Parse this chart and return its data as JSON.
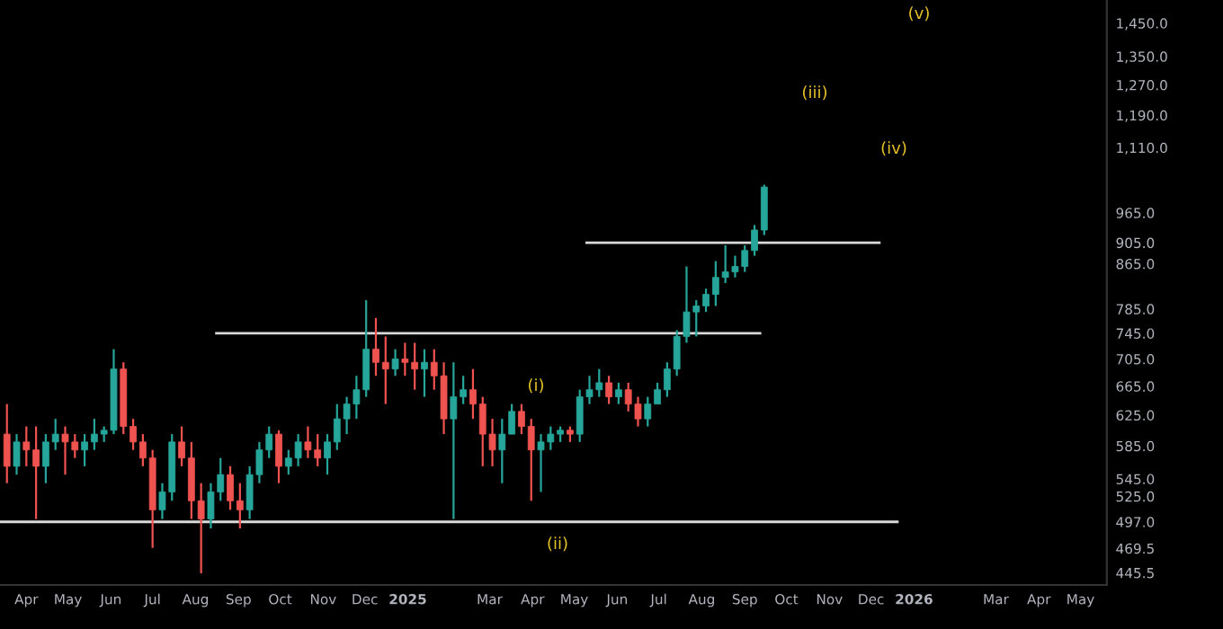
{
  "chart_data": {
    "type": "candlestick",
    "x": [
      "2024-03-18",
      "2024-03-25",
      "2024-04-01",
      "2024-04-08",
      "2024-04-15",
      "2024-04-22",
      "2024-04-29",
      "2024-05-06",
      "2024-05-13",
      "2024-05-20",
      "2024-05-27",
      "2024-06-03",
      "2024-06-10",
      "2024-06-17",
      "2024-06-24",
      "2024-07-01",
      "2024-07-08",
      "2024-07-15",
      "2024-07-22",
      "2024-07-29",
      "2024-08-05",
      "2024-08-12",
      "2024-08-19",
      "2024-08-26",
      "2024-09-02",
      "2024-09-09",
      "2024-09-16",
      "2024-09-23",
      "2024-09-30",
      "2024-10-07",
      "2024-10-14",
      "2024-10-21",
      "2024-10-28",
      "2024-11-04",
      "2024-11-11",
      "2024-11-18",
      "2024-11-25",
      "2024-12-02",
      "2024-12-09",
      "2024-12-16",
      "2024-12-23",
      "2024-12-30",
      "2025-01-06",
      "2025-01-13",
      "2025-01-20",
      "2025-01-27",
      "2025-02-03",
      "2025-02-10",
      "2025-02-17",
      "2025-02-24",
      "2025-03-03",
      "2025-03-10",
      "2025-03-17",
      "2025-03-24",
      "2025-03-31",
      "2025-04-07",
      "2025-04-14",
      "2025-04-21",
      "2025-04-28",
      "2025-05-05",
      "2025-05-12",
      "2025-05-19",
      "2025-05-26",
      "2025-06-02",
      "2025-06-09",
      "2025-06-16",
      "2025-06-23",
      "2025-06-30",
      "2025-07-07",
      "2025-07-14",
      "2025-07-21",
      "2025-07-28",
      "2025-08-04",
      "2025-08-11",
      "2025-08-18",
      "2025-08-25",
      "2025-09-01",
      "2025-09-08",
      "2025-09-15"
    ],
    "ohlc": [
      [
        600,
        640,
        540,
        560
      ],
      [
        560,
        600,
        550,
        590
      ],
      [
        590,
        610,
        560,
        580
      ],
      [
        580,
        610,
        500,
        560
      ],
      [
        560,
        600,
        540,
        590
      ],
      [
        590,
        620,
        580,
        600
      ],
      [
        600,
        610,
        550,
        590
      ],
      [
        590,
        600,
        570,
        580
      ],
      [
        580,
        600,
        560,
        590
      ],
      [
        590,
        620,
        580,
        600
      ],
      [
        600,
        610,
        590,
        605
      ],
      [
        605,
        720,
        600,
        690
      ],
      [
        690,
        700,
        600,
        610
      ],
      [
        610,
        620,
        580,
        590
      ],
      [
        590,
        600,
        560,
        570
      ],
      [
        570,
        580,
        470,
        510
      ],
      [
        510,
        540,
        500,
        530
      ],
      [
        530,
        600,
        520,
        590
      ],
      [
        590,
        610,
        560,
        570
      ],
      [
        570,
        590,
        500,
        520
      ],
      [
        520,
        540,
        445,
        500
      ],
      [
        500,
        540,
        490,
        530
      ],
      [
        530,
        570,
        520,
        550
      ],
      [
        550,
        560,
        510,
        520
      ],
      [
        520,
        540,
        490,
        510
      ],
      [
        510,
        560,
        500,
        550
      ],
      [
        550,
        590,
        540,
        580
      ],
      [
        580,
        610,
        570,
        600
      ],
      [
        600,
        605,
        540,
        560
      ],
      [
        560,
        580,
        550,
        570
      ],
      [
        570,
        600,
        560,
        590
      ],
      [
        590,
        610,
        570,
        580
      ],
      [
        580,
        600,
        560,
        570
      ],
      [
        570,
        600,
        550,
        590
      ],
      [
        590,
        640,
        580,
        620
      ],
      [
        620,
        650,
        600,
        640
      ],
      [
        640,
        680,
        620,
        660
      ],
      [
        660,
        800,
        650,
        720
      ],
      [
        720,
        770,
        680,
        700
      ],
      [
        700,
        740,
        640,
        690
      ],
      [
        690,
        720,
        680,
        705
      ],
      [
        705,
        730,
        680,
        700
      ],
      [
        700,
        730,
        660,
        690
      ],
      [
        690,
        720,
        650,
        700
      ],
      [
        700,
        720,
        660,
        680
      ],
      [
        680,
        700,
        600,
        620
      ],
      [
        620,
        700,
        500,
        650
      ],
      [
        650,
        680,
        640,
        660
      ],
      [
        660,
        690,
        620,
        640
      ],
      [
        640,
        650,
        560,
        600
      ],
      [
        600,
        620,
        560,
        580
      ],
      [
        580,
        620,
        540,
        600
      ],
      [
        600,
        640,
        600,
        630
      ],
      [
        630,
        640,
        600,
        610
      ],
      [
        610,
        620,
        520,
        580
      ],
      [
        580,
        600,
        530,
        590
      ],
      [
        590,
        610,
        580,
        600
      ],
      [
        600,
        610,
        590,
        605
      ],
      [
        605,
        610,
        590,
        600
      ],
      [
        600,
        660,
        590,
        650
      ],
      [
        650,
        680,
        640,
        660
      ],
      [
        660,
        690,
        650,
        670
      ],
      [
        670,
        680,
        640,
        650
      ],
      [
        650,
        670,
        640,
        660
      ],
      [
        660,
        670,
        630,
        640
      ],
      [
        640,
        650,
        610,
        620
      ],
      [
        620,
        650,
        610,
        640
      ],
      [
        640,
        670,
        640,
        660
      ],
      [
        660,
        700,
        650,
        690
      ],
      [
        690,
        750,
        680,
        740
      ],
      [
        740,
        860,
        730,
        780
      ],
      [
        780,
        800,
        740,
        790
      ],
      [
        790,
        820,
        780,
        810
      ],
      [
        810,
        870,
        790,
        840
      ],
      [
        840,
        900,
        830,
        850
      ],
      [
        850,
        880,
        840,
        860
      ],
      [
        860,
        900,
        850,
        890
      ],
      [
        890,
        940,
        880,
        930
      ],
      [
        930,
        1025,
        920,
        1020
      ]
    ],
    "colors": [
      "#ef5350",
      "#26a69a",
      "#ef5350",
      "#ef5350",
      "#26a69a",
      "#26a69a",
      "#ef5350",
      "#ef5350",
      "#26a69a",
      "#26a69a",
      "#26a69a",
      "#26a69a",
      "#ef5350",
      "#ef5350",
      "#ef5350",
      "#ef5350",
      "#26a69a",
      "#26a69a",
      "#ef5350",
      "#ef5350",
      "#ef5350",
      "#26a69a",
      "#26a69a",
      "#ef5350",
      "#ef5350",
      "#26a69a",
      "#26a69a",
      "#26a69a",
      "#ef5350",
      "#26a69a",
      "#26a69a",
      "#ef5350",
      "#ef5350",
      "#26a69a",
      "#26a69a",
      "#26a69a",
      "#26a69a",
      "#26a69a",
      "#ef5350",
      "#ef5350",
      "#26a69a",
      "#ef5350",
      "#ef5350",
      "#26a69a",
      "#ef5350",
      "#ef5350",
      "#26a69a",
      "#26a69a",
      "#ef5350",
      "#ef5350",
      "#ef5350",
      "#26a69a",
      "#26a69a",
      "#ef5350",
      "#ef5350",
      "#26a69a",
      "#26a69a",
      "#26a69a",
      "#ef5350",
      "#26a69a",
      "#26a69a",
      "#26a69a",
      "#ef5350",
      "#26a69a",
      "#ef5350",
      "#ef5350",
      "#26a69a",
      "#26a69a",
      "#26a69a",
      "#26a69a",
      "#26a69a",
      "#26a69a",
      "#26a69a",
      "#26a69a",
      "#26a69a",
      "#26a69a",
      "#26a69a",
      "#26a69a",
      "#26a69a"
    ],
    "series": [
      {
        "type": "line",
        "color": "#d9d9d9",
        "x": [
          "2024-03-13",
          "2025-12-20"
        ],
        "values": [
          497,
          497
        ]
      },
      {
        "type": "line",
        "color": "#d9d9d9",
        "x": [
          "2024-08-16",
          "2025-09-12"
        ],
        "values": [
          745,
          745
        ]
      },
      {
        "type": "line",
        "color": "#d9d9d9",
        "x": [
          "2025-05-10",
          "2025-12-07"
        ],
        "values": [
          905,
          905
        ]
      }
    ],
    "annotations": [
      "(i)",
      "(ii)",
      "(iii)",
      "(iv)",
      "(v)"
    ],
    "log": "y",
    "xlim": [
      "2024-03-13",
      "2026-05-20"
    ],
    "xticks": [
      {
        "value": "2024-04-01",
        "label": "Apr"
      },
      {
        "value": "2024-05-01",
        "label": "May"
      },
      {
        "value": "2024-06-01",
        "label": "Jun"
      },
      {
        "value": "2024-07-01",
        "label": "Jul"
      },
      {
        "value": "2024-08-01",
        "label": "Aug"
      },
      {
        "value": "2024-09-01",
        "label": "Sep"
      },
      {
        "value": "2024-10-01",
        "label": "Oct"
      },
      {
        "value": "2024-11-01",
        "label": "Nov"
      },
      {
        "value": "2024-12-01",
        "label": "Dec"
      },
      {
        "value": "2025-01-01",
        "label": "2025"
      },
      {
        "value": "2025-03-01",
        "label": "Mar"
      },
      {
        "value": "2025-04-01",
        "label": "Apr"
      },
      {
        "value": "2025-05-01",
        "label": "May"
      },
      {
        "value": "2025-06-01",
        "label": "Jun"
      },
      {
        "value": "2025-07-01",
        "label": "Jul"
      },
      {
        "value": "2025-08-01",
        "label": "Aug"
      },
      {
        "value": "2025-09-01",
        "label": "Sep"
      },
      {
        "value": "2025-10-01",
        "label": "Oct"
      },
      {
        "value": "2025-11-01",
        "label": "Nov"
      },
      {
        "value": "2025-12-01",
        "label": "Dec"
      },
      {
        "value": "2026-01-01",
        "label": "2026"
      },
      {
        "value": "2026-03-01",
        "label": "Mar"
      },
      {
        "value": "2026-04-01",
        "label": "Apr"
      },
      {
        "value": "2026-05-01",
        "label": "May"
      }
    ],
    "ylim": [
      434,
      1524
    ],
    "yticks": [
      {
        "value": 445.5,
        "label": "445.5"
      },
      {
        "value": 469.5,
        "label": "469.5"
      },
      {
        "value": 497,
        "label": "497.0"
      },
      {
        "value": 525,
        "label": "525.0"
      },
      {
        "value": 545,
        "label": "545.0"
      },
      {
        "value": 585,
        "label": "585.0"
      },
      {
        "value": 625,
        "label": "625.0"
      },
      {
        "value": 665,
        "label": "665.0"
      },
      {
        "value": 705,
        "label": "705.0"
      },
      {
        "value": 745,
        "label": "745.0"
      },
      {
        "value": 785,
        "label": "785.0"
      },
      {
        "value": 865,
        "label": "865.0"
      },
      {
        "value": 905,
        "label": "905.0"
      },
      {
        "value": 965,
        "label": "965.0"
      },
      {
        "value": 1110,
        "label": "1,110.0"
      },
      {
        "value": 1190,
        "label": "1,190.0"
      },
      {
        "value": 1270,
        "label": "1,270.0"
      },
      {
        "value": 1350,
        "label": "1,350.0"
      },
      {
        "value": 1450,
        "label": "1,450.0"
      }
    ],
    "grid": false,
    "legend": false
  }
}
